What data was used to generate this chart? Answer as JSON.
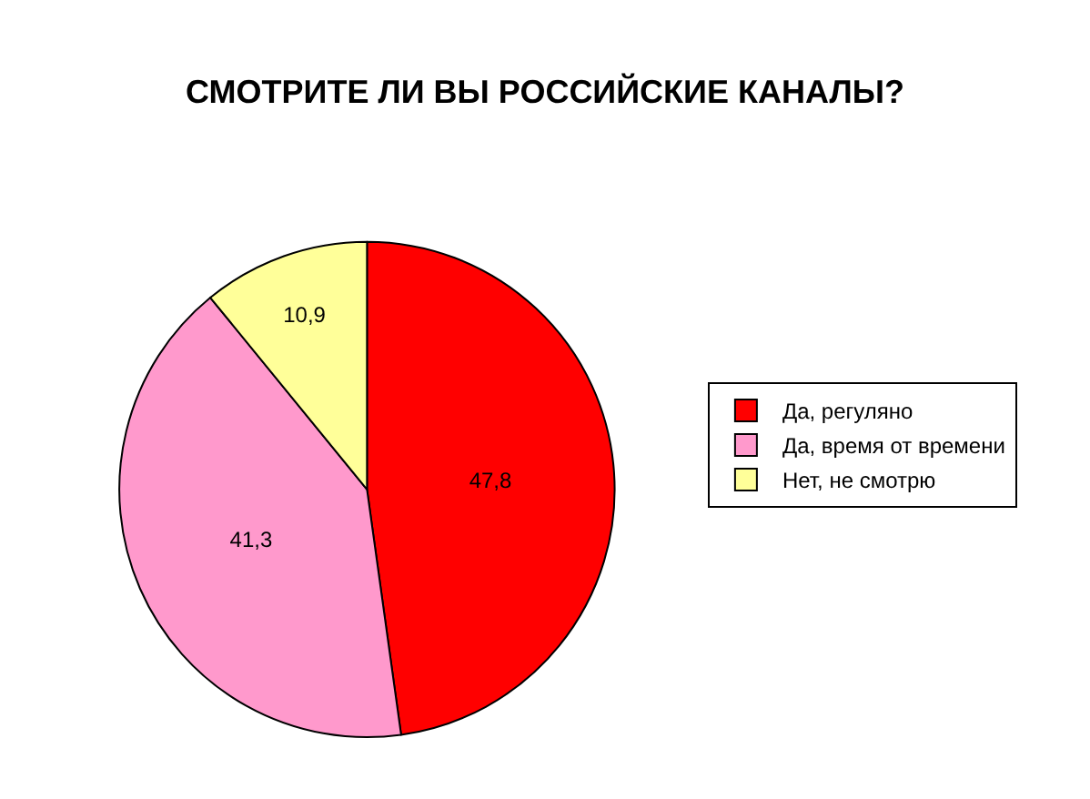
{
  "chart_data": {
    "type": "pie",
    "title": "СМОТРИТЕ ЛИ ВЫ РОССИЙСКИЕ КАНАЛЫ?",
    "categories": [
      "Да, регуляно",
      "Да, время от времени",
      "Нет, не смотрю"
    ],
    "values": [
      47.8,
      41.3,
      10.9
    ],
    "colors": [
      "#ff0000",
      "#ff99cc",
      "#ffff99"
    ],
    "value_labels": [
      "47,8",
      "41,3",
      "10,9"
    ],
    "legend": "right"
  }
}
